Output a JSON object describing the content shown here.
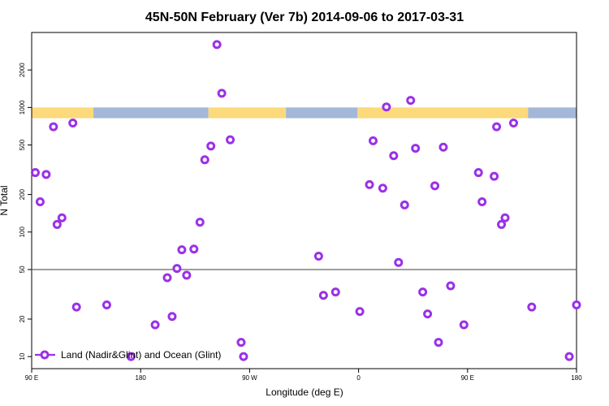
{
  "chart_data": {
    "type": "scatter",
    "title": "45N-50N February (Ver 7b)   2014-09-06 to 2017-03-31",
    "xlabel": "Longitude (deg E)",
    "ylabel": "N Total",
    "x_scale": "linear",
    "y_scale": "log",
    "xlim": [
      90,
      540
    ],
    "ylim": [
      8,
      4000
    ],
    "x_ticks": [
      {
        "value": 90,
        "label": "90 E"
      },
      {
        "value": 180,
        "label": "180"
      },
      {
        "value": 270,
        "label": "90 W"
      },
      {
        "value": 360,
        "label": "0"
      },
      {
        "value": 450,
        "label": "90 E"
      },
      {
        "value": 540,
        "label": "180"
      }
    ],
    "y_ticks": [
      {
        "value": 10,
        "label": "10"
      },
      {
        "value": 20,
        "label": "20"
      },
      {
        "value": 50,
        "label": "50"
      },
      {
        "value": 100,
        "label": "100"
      },
      {
        "value": 200,
        "label": "200"
      },
      {
        "value": 500,
        "label": "500"
      },
      {
        "value": 1000,
        "label": "1000"
      },
      {
        "value": 2000,
        "label": "2000"
      }
    ],
    "reference_line": 50,
    "band": {
      "y_range": [
        820,
        1000
      ],
      "segments": [
        {
          "x0": 90,
          "x1": 141,
          "surface": "land"
        },
        {
          "x0": 141,
          "x1": 236,
          "surface": "ocean"
        },
        {
          "x0": 236,
          "x1": 300,
          "surface": "land"
        },
        {
          "x0": 300,
          "x1": 360,
          "surface": "ocean"
        },
        {
          "x0": 360,
          "x1": 370,
          "surface": "ocean"
        },
        {
          "x0": 359,
          "x1": 500,
          "surface": "land"
        },
        {
          "x0": 500,
          "x1": 540,
          "surface": "ocean"
        }
      ]
    },
    "colors": {
      "series": "#9b30e8",
      "land": "#fcd97a",
      "ocean": "#a3b7d9",
      "reference": "#555555"
    },
    "legend_position": "bottom-left",
    "series": [
      {
        "name": "Land (Nadir&Glint) and Ocean (Glint)",
        "x": [
          93,
          97,
          102,
          108,
          111,
          115,
          124,
          127,
          152,
          172,
          192,
          202,
          206,
          210,
          214,
          218,
          224,
          229,
          233,
          238,
          243,
          247,
          254,
          263,
          265,
          327,
          331,
          341,
          361,
          369,
          372,
          380,
          383,
          389,
          393,
          398,
          403,
          407,
          413,
          417,
          423,
          426,
          430,
          436,
          447,
          459,
          462,
          472,
          474,
          478,
          481,
          488,
          503,
          534,
          540
        ],
        "y": [
          300,
          175,
          290,
          700,
          115,
          130,
          750,
          25,
          26,
          10,
          18,
          43,
          21,
          51,
          72,
          45,
          73,
          120,
          380,
          490,
          3200,
          1300,
          550,
          13,
          10,
          64,
          31,
          33,
          23,
          240,
          540,
          225,
          1010,
          410,
          57,
          165,
          1140,
          470,
          33,
          22,
          235,
          13,
          480,
          37,
          18,
          300,
          175,
          280,
          700,
          115,
          130,
          750,
          25,
          10,
          26
        ]
      }
    ]
  }
}
